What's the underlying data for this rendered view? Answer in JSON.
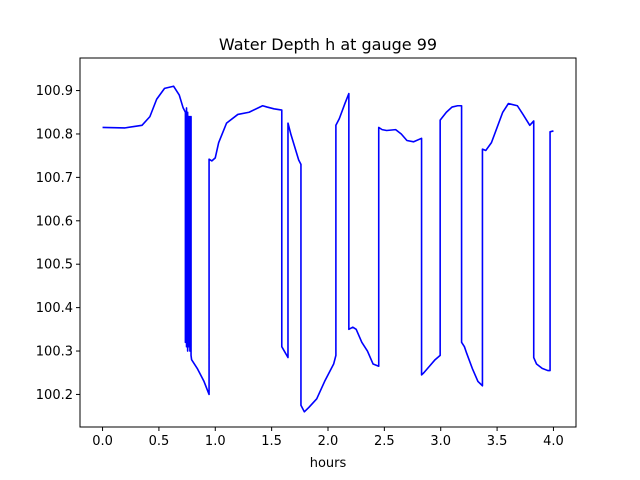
{
  "chart_data": {
    "type": "line",
    "title": "Water Depth h at gauge 99",
    "xlabel": "hours",
    "ylabel": "",
    "xlim": [
      -0.2,
      4.2
    ],
    "ylim": [
      100.125,
      100.975
    ],
    "grid": false,
    "legend": "none",
    "x_ticks": [
      0.0,
      0.5,
      1.0,
      1.5,
      2.0,
      2.5,
      3.0,
      3.5,
      4.0
    ],
    "x_tick_labels": [
      "0.0",
      "0.5",
      "1.0",
      "1.5",
      "2.0",
      "2.5",
      "3.0",
      "3.5",
      "4.0"
    ],
    "y_ticks": [
      100.2,
      100.3,
      100.4,
      100.5,
      100.6,
      100.7,
      100.8,
      100.9
    ],
    "y_tick_labels": [
      "100.2",
      "100.3",
      "100.4",
      "100.5",
      "100.6",
      "100.7",
      "100.8",
      "100.9"
    ],
    "series": [
      {
        "color": "#0000ff",
        "x": [
          0.0,
          0.2,
          0.35,
          0.42,
          0.48,
          0.55,
          0.63,
          0.68,
          0.715,
          0.735,
          0.735,
          0.745,
          0.745,
          0.755,
          0.755,
          0.765,
          0.765,
          0.775,
          0.775,
          0.785,
          0.785,
          0.79,
          0.84,
          0.9,
          0.945,
          0.945,
          0.97,
          1.0,
          1.03,
          1.1,
          1.2,
          1.3,
          1.42,
          1.46,
          1.52,
          1.59,
          1.59,
          1.645,
          1.645,
          1.67,
          1.74,
          1.76,
          1.76,
          1.79,
          1.83,
          1.9,
          1.97,
          2.05,
          2.07,
          2.07,
          2.1,
          2.15,
          2.185,
          2.185,
          2.22,
          2.25,
          2.3,
          2.35,
          2.4,
          2.45,
          2.45,
          2.48,
          2.52,
          2.6,
          2.65,
          2.7,
          2.76,
          2.83,
          2.83,
          2.85,
          2.9,
          2.95,
          2.995,
          2.995,
          3.05,
          3.1,
          3.15,
          3.185,
          3.185,
          3.21,
          3.23,
          3.28,
          3.33,
          3.37,
          3.37,
          3.4,
          3.45,
          3.55,
          3.6,
          3.68,
          3.73,
          3.79,
          3.825,
          3.825,
          3.85,
          3.9,
          3.95,
          3.97,
          3.97,
          4.0
        ],
        "y": [
          100.815,
          100.814,
          100.82,
          100.84,
          100.88,
          100.905,
          100.91,
          100.89,
          100.86,
          100.85,
          100.32,
          100.86,
          100.31,
          100.85,
          100.3,
          100.84,
          100.31,
          100.84,
          100.3,
          100.84,
          100.29,
          100.28,
          100.26,
          100.23,
          100.2,
          100.742,
          100.738,
          100.745,
          100.78,
          100.825,
          100.845,
          100.85,
          100.865,
          100.862,
          100.858,
          100.855,
          100.31,
          100.285,
          100.825,
          100.8,
          100.74,
          100.73,
          100.175,
          100.16,
          100.17,
          100.19,
          100.23,
          100.27,
          100.29,
          100.82,
          100.835,
          100.87,
          100.893,
          100.35,
          100.355,
          100.35,
          100.32,
          100.3,
          100.27,
          100.265,
          100.815,
          100.81,
          100.808,
          100.81,
          100.8,
          100.785,
          100.782,
          100.79,
          100.245,
          100.25,
          100.265,
          100.28,
          100.29,
          100.832,
          100.85,
          100.862,
          100.865,
          100.865,
          100.32,
          100.31,
          100.295,
          100.26,
          100.23,
          100.22,
          100.765,
          100.762,
          100.78,
          100.85,
          100.87,
          100.865,
          100.845,
          100.82,
          100.83,
          100.285,
          100.27,
          100.26,
          100.255,
          100.255,
          100.805,
          100.807
        ]
      }
    ]
  }
}
